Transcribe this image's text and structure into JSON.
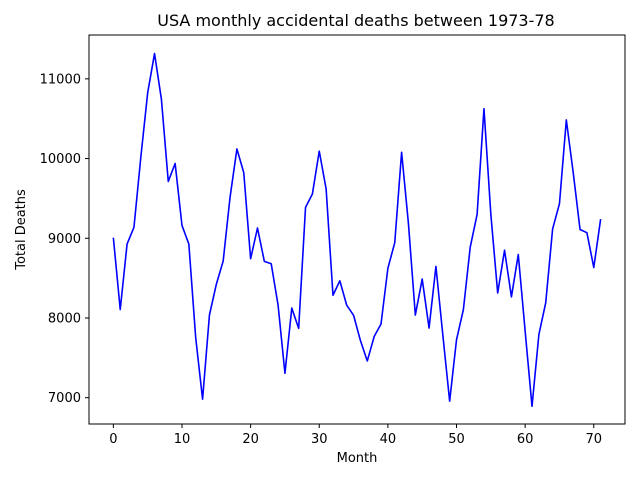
{
  "chart_data": {
    "type": "line",
    "title": "USA monthly accidental deaths between 1973-78",
    "xlabel": "Month",
    "ylabel": "Total Deaths",
    "xlim": [
      -3.55,
      74.55
    ],
    "ylim": [
      6670,
      11550
    ],
    "xticks": [
      0,
      10,
      20,
      30,
      40,
      50,
      60,
      70
    ],
    "yticks": [
      7000,
      8000,
      9000,
      10000,
      11000
    ],
    "grid": false,
    "series": [
      {
        "name": "Accidental deaths",
        "color": "#0000ff",
        "x": [
          0,
          1,
          2,
          3,
          4,
          5,
          6,
          7,
          8,
          9,
          10,
          11,
          12,
          13,
          14,
          15,
          16,
          17,
          18,
          19,
          20,
          21,
          22,
          23,
          24,
          25,
          26,
          27,
          28,
          29,
          30,
          31,
          32,
          33,
          34,
          35,
          36,
          37,
          38,
          39,
          40,
          41,
          42,
          43,
          44,
          45,
          46,
          47,
          48,
          49,
          50,
          51,
          52,
          53,
          54,
          55,
          56,
          57,
          58,
          59,
          60,
          61,
          62,
          63,
          64,
          65,
          66,
          67,
          68,
          69,
          70,
          71
        ],
        "values": [
          9007,
          8106,
          8928,
          9137,
          10017,
          10826,
          11317,
          10744,
          9713,
          9938,
          9161,
          8927,
          7750,
          6981,
          8038,
          8422,
          8714,
          9512,
          10120,
          9823,
          8743,
          9129,
          8710,
          8680,
          8162,
          7306,
          8124,
          7870,
          9387,
          9556,
          10093,
          9620,
          8285,
          8466,
          8160,
          8034,
          7717,
          7461,
          7767,
          7925,
          8623,
          8945,
          10078,
          9179,
          8037,
          8488,
          7874,
          8647,
          7792,
          6957,
          7726,
          8106,
          8890,
          9299,
          10625,
          9302,
          8314,
          8850,
          8265,
          8796,
          7836,
          6892,
          7791,
          8192,
          9115,
          9434,
          10484,
          9827,
          9110,
          9070,
          8633,
          9240
        ]
      }
    ]
  }
}
